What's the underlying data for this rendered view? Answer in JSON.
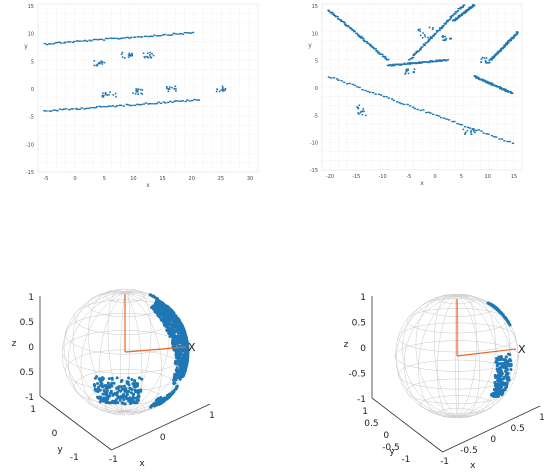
{
  "colors": {
    "points": "#1f77b4",
    "wire": "#c9c9c9",
    "grid": "#d2d2d2",
    "axis": "#e8642a",
    "frame": "#333333"
  },
  "chart_data": [
    {
      "type": "scatter",
      "panel": "top-left",
      "xticks": [
        "-5",
        "0",
        "5",
        "10",
        "15",
        "20",
        "25",
        "30"
      ],
      "yticks": [
        "15",
        "10",
        "5",
        "0",
        "-5",
        "-10",
        "-15"
      ],
      "xlabel": "x",
      "ylabel": "y",
      "xlim": [
        -8,
        32
      ],
      "ylim": [
        -15,
        15
      ],
      "grid": true,
      "series": [
        {
          "segments": [
            [
              -7,
              8,
              20,
              10
            ],
            [
              -7,
              -4,
              21,
              -2
            ]
          ],
          "blobs": [
            [
              3,
              4.5,
              2,
              1
            ],
            [
              8,
              6,
              2,
              1
            ],
            [
              12,
              6,
              2,
              1
            ],
            [
              5,
              -1,
              3,
              1
            ],
            [
              10,
              -0.5,
              2,
              1
            ],
            [
              16,
              0,
              2,
              1
            ],
            [
              25,
              0,
              2,
              1
            ]
          ]
        }
      ]
    },
    {
      "type": "scatter",
      "panel": "top-right",
      "xticks": [
        "-20",
        "-15",
        "-10",
        "-5",
        "0",
        "5",
        "10",
        "15"
      ],
      "yticks": [
        "15",
        "10",
        "5",
        "0",
        "-5",
        "-10",
        "-15"
      ],
      "xlabel": "x",
      "ylabel": "y",
      "xlim": [
        -21,
        16
      ],
      "ylim": [
        -15,
        15
      ],
      "grid": true,
      "series": [
        {
          "segments": [
            [
              -20,
              2,
              14,
              -10
            ],
            [
              -20,
              14,
              -9,
              5
            ],
            [
              -5,
              5,
              5,
              15
            ],
            [
              3,
              12,
              7,
              15
            ],
            [
              -9,
              4,
              2,
              5
            ],
            [
              7,
              2,
              14,
              -1
            ],
            [
              10,
              5,
              15,
              10
            ]
          ],
          "blobs": [
            [
              -14,
              -4,
              2,
              2
            ],
            [
              -5,
              3,
              2,
              1
            ],
            [
              2,
              9,
              2,
              1
            ],
            [
              9,
              5,
              2,
              1
            ],
            [
              6,
              -8,
              3,
              1
            ],
            [
              -2,
              10,
              3,
              2
            ]
          ]
        }
      ]
    },
    {
      "type": "scatter",
      "panel": "bottom-left",
      "zticks": [
        "1",
        "0.5",
        "0",
        "0.5",
        "-1"
      ],
      "yticks": [
        "1",
        "0",
        "-1"
      ],
      "xticks": [
        "-1",
        "0",
        "1"
      ],
      "ylabel": "y",
      "xlabel": "x",
      "zlabel": "z",
      "axis_marker": "X",
      "grid": true,
      "series": [
        {
          "points_on_sphere": "blue scan points projected onto unit sphere"
        }
      ]
    },
    {
      "type": "scatter",
      "panel": "bottom-right",
      "zticks": [
        "1",
        "0.5",
        "0",
        "-0.5",
        "-1"
      ],
      "yticks": [
        "1",
        "0.5",
        "0",
        "-0.5",
        "-1"
      ],
      "xticks": [
        "-1",
        "-0.5",
        "0",
        "0.5",
        "1"
      ],
      "ylabel": "y",
      "xlabel": "x",
      "zlabel": "z",
      "axis_marker": "X",
      "grid": true,
      "series": [
        {
          "points_on_sphere": "blue scan points projected onto unit sphere"
        }
      ]
    }
  ]
}
